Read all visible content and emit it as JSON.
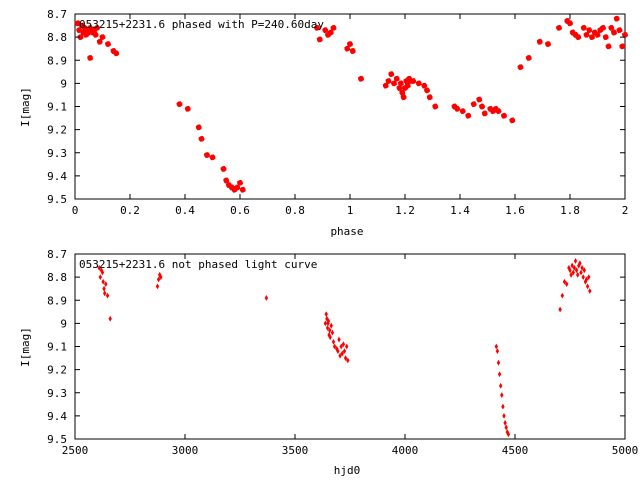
{
  "colors": {
    "points": "#ff0000",
    "axes": "#000000",
    "background": "#ffffff"
  },
  "chart_data": [
    {
      "type": "scatter",
      "title": "053215+2231.6 phased with P=240.60day",
      "xlabel": "phase",
      "ylabel": "I[mag]",
      "xlim": [
        0,
        2
      ],
      "ylim": [
        8.7,
        9.5
      ],
      "y_inverted": true,
      "grid": false,
      "marker": "star",
      "x_ticks": [
        "0",
        "0.2",
        "0.4",
        "0.6",
        "0.8",
        "1",
        "1.2",
        "1.4",
        "1.6",
        "1.8",
        "2"
      ],
      "y_ticks": [
        "8.7",
        "8.8",
        "8.9",
        "9",
        "9.1",
        "9.2",
        "9.3",
        "9.4",
        "9.5"
      ],
      "series": [
        {
          "x": [
            0.01,
            0.015,
            0.02,
            0.025,
            0.03,
            0.035,
            0.04,
            0.045,
            0.05,
            0.055,
            0.06,
            0.065,
            0.07,
            0.075,
            0.08,
            0.09,
            0.1,
            0.12,
            0.14,
            0.15,
            0.055,
            0.38,
            0.41,
            0.45,
            0.46,
            0.48,
            0.5,
            0.54,
            0.55,
            0.56,
            0.57,
            0.58,
            0.59,
            0.6,
            0.61,
            0.88,
            0.89,
            0.91,
            0.92,
            0.93,
            0.94,
            0.99,
            1.0,
            1.01,
            1.04,
            1.13,
            1.14,
            1.15,
            1.16,
            1.17,
            1.18,
            1.185,
            1.19,
            1.195,
            1.2,
            1.205,
            1.21,
            1.215,
            1.22,
            1.23,
            1.25,
            1.27,
            1.28,
            1.29,
            1.31,
            1.38,
            1.39,
            1.41,
            1.43,
            1.45,
            1.47,
            1.48,
            1.49,
            1.51,
            1.52,
            1.53,
            1.54,
            1.56,
            1.59,
            1.62,
            1.65,
            1.69,
            1.72,
            1.76,
            1.79,
            1.8,
            1.81,
            1.82,
            1.83,
            1.85,
            1.86,
            1.87,
            1.88,
            1.89,
            1.9,
            1.91,
            1.92,
            1.93,
            1.94,
            1.95,
            1.96,
            1.97,
            1.98,
            1.99,
            2.0
          ],
          "y": [
            8.74,
            8.77,
            8.8,
            8.75,
            8.78,
            8.76,
            8.79,
            8.77,
            8.78,
            8.76,
            8.77,
            8.78,
            8.77,
            8.79,
            8.76,
            8.82,
            8.8,
            8.83,
            8.86,
            8.87,
            8.89,
            9.09,
            9.11,
            9.19,
            9.24,
            9.31,
            9.32,
            9.37,
            9.42,
            9.44,
            9.45,
            9.46,
            9.45,
            9.43,
            9.46,
            8.76,
            8.81,
            8.77,
            8.79,
            8.78,
            8.76,
            8.85,
            8.83,
            8.86,
            8.98,
            9.01,
            8.99,
            8.96,
            9.0,
            8.98,
            9.02,
            9.0,
            9.04,
            9.06,
            9.02,
            8.99,
            9.01,
            8.98,
            8.99,
            8.99,
            9.0,
            9.01,
            9.03,
            9.06,
            9.1,
            9.1,
            9.11,
            9.12,
            9.14,
            9.09,
            9.07,
            9.1,
            9.13,
            9.11,
            9.12,
            9.11,
            9.12,
            9.14,
            9.16,
            8.93,
            8.89,
            8.82,
            8.83,
            8.76,
            8.73,
            8.74,
            8.78,
            8.79,
            8.8,
            8.76,
            8.79,
            8.77,
            8.8,
            8.78,
            8.79,
            8.77,
            8.76,
            8.8,
            8.84,
            8.76,
            8.78,
            8.72,
            8.77,
            8.84,
            8.79
          ]
        }
      ]
    },
    {
      "type": "scatter",
      "title": "053215+2231.6 not phased light curve",
      "xlabel": "hjd0",
      "ylabel": "I[mag]",
      "xlim": [
        2500,
        5000
      ],
      "ylim": [
        8.7,
        9.5
      ],
      "y_inverted": true,
      "grid": false,
      "marker": "diamond",
      "x_ticks": [
        "2500",
        "3000",
        "3500",
        "4000",
        "4500",
        "5000"
      ],
      "y_ticks": [
        "8.7",
        "8.8",
        "8.9",
        "9",
        "9.1",
        "9.2",
        "9.3",
        "9.4",
        "9.5"
      ],
      "series": [
        {
          "x": [
            2610,
            2615,
            2620,
            2625,
            2628,
            2632,
            2635,
            2640,
            2648,
            2660,
            2875,
            2880,
            2885,
            2890,
            3370,
            3638,
            3642,
            3645,
            3648,
            3650,
            3652,
            3655,
            3658,
            3660,
            3665,
            3670,
            3675,
            3680,
            3690,
            3695,
            3700,
            3705,
            3710,
            3715,
            3720,
            3725,
            3730,
            3735,
            3740,
            4415,
            4420,
            4425,
            4430,
            4435,
            4440,
            4445,
            4450,
            4455,
            4460,
            4465,
            4470,
            4705,
            4715,
            4725,
            4735,
            4745,
            4750,
            4755,
            4760,
            4765,
            4770,
            4775,
            4780,
            4785,
            4790,
            4795,
            4800,
            4805,
            4810,
            4815,
            4820,
            4825,
            4830,
            4835,
            4840
          ],
          "y": [
            8.76,
            8.8,
            8.77,
            8.78,
            8.82,
            8.85,
            8.87,
            8.83,
            8.88,
            8.98,
            8.84,
            8.81,
            8.79,
            8.8,
            8.89,
            9.0,
            8.96,
            8.98,
            9.02,
            9.0,
            8.99,
            9.05,
            9.03,
            9.06,
            9.01,
            9.04,
            9.08,
            9.1,
            9.11,
            9.12,
            9.07,
            9.14,
            9.1,
            9.13,
            9.09,
            9.12,
            9.15,
            9.1,
            9.16,
            9.1,
            9.12,
            9.17,
            9.22,
            9.27,
            9.31,
            9.36,
            9.4,
            9.43,
            9.45,
            9.47,
            9.48,
            8.94,
            8.88,
            8.82,
            8.83,
            8.76,
            8.77,
            8.79,
            8.75,
            8.78,
            8.76,
            8.73,
            8.77,
            8.79,
            8.75,
            8.74,
            8.78,
            8.76,
            8.8,
            8.77,
            8.82,
            8.81,
            8.84,
            8.8,
            8.86
          ]
        }
      ]
    }
  ]
}
